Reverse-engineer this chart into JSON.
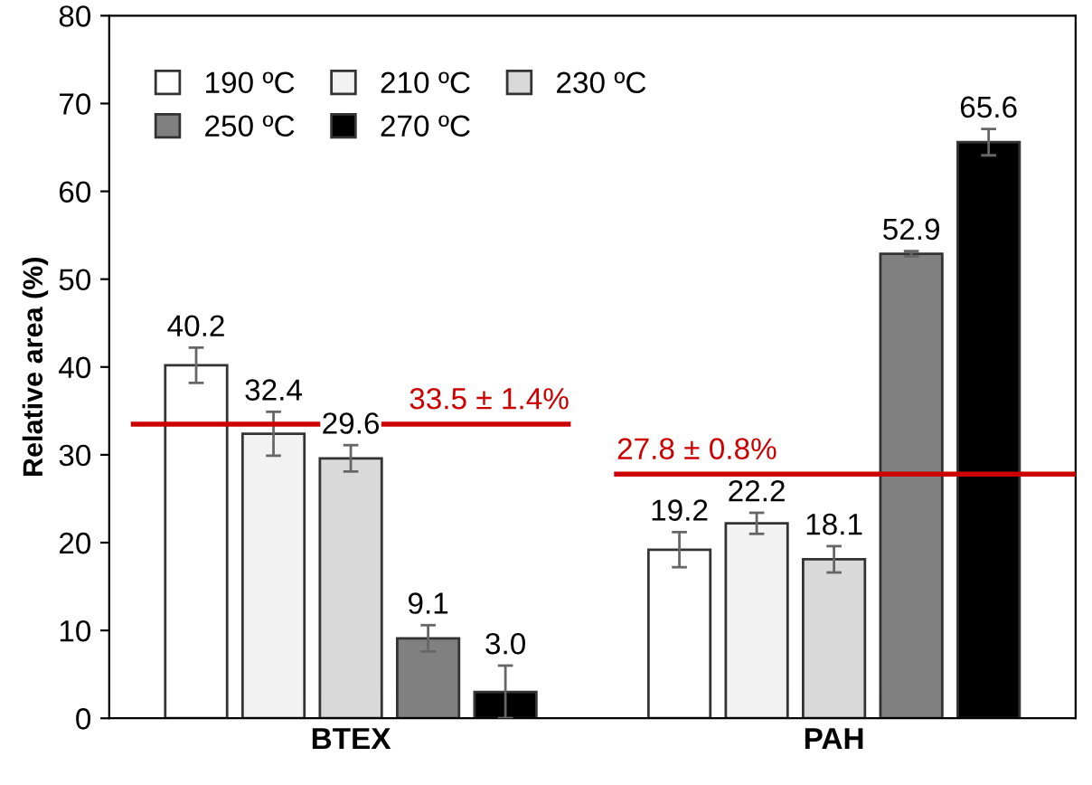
{
  "chart_data": {
    "type": "bar",
    "ylabel": "Relative area (%)",
    "categories": [
      "BTEX",
      "PAH"
    ],
    "series": [
      {
        "name": "190 ºC",
        "color": "#ffffff",
        "values": [
          40.2,
          19.2
        ],
        "value_labels": [
          "40.2",
          "19.2"
        ],
        "errors": [
          2.0,
          2.0
        ]
      },
      {
        "name": "210 ºC",
        "color": "#f2f2f2",
        "values": [
          32.4,
          22.2
        ],
        "value_labels": [
          "32.4",
          "22.2"
        ],
        "errors": [
          2.5,
          1.2
        ]
      },
      {
        "name": "230 ºC",
        "color": "#d9d9d9",
        "values": [
          29.6,
          18.1
        ],
        "value_labels": [
          "29.6",
          "18.1"
        ],
        "errors": [
          1.5,
          1.5
        ]
      },
      {
        "name": "250 ºC",
        "color": "#808080",
        "values": [
          9.1,
          52.9
        ],
        "value_labels": [
          "9.1",
          "52.9"
        ],
        "errors": [
          1.5,
          0.3
        ]
      },
      {
        "name": "270 ºC",
        "color": "#000000",
        "values": [
          3.0,
          65.6
        ],
        "value_labels": [
          "3.0",
          "65.6"
        ],
        "errors": [
          3.0,
          1.5
        ]
      }
    ],
    "ylim": [
      0,
      80
    ],
    "yticks": [
      0,
      10,
      20,
      30,
      40,
      50,
      60,
      70,
      80
    ],
    "legend": "top left",
    "grid": false,
    "ref_lines": [
      {
        "axis": "y",
        "value": 33.5,
        "label": "33.5 ± 1.4%",
        "color": "#cc0000"
      },
      {
        "axis": "y",
        "value": 27.8,
        "label": "27.8 ± 0.8%",
        "color": "#cc0000"
      }
    ]
  }
}
